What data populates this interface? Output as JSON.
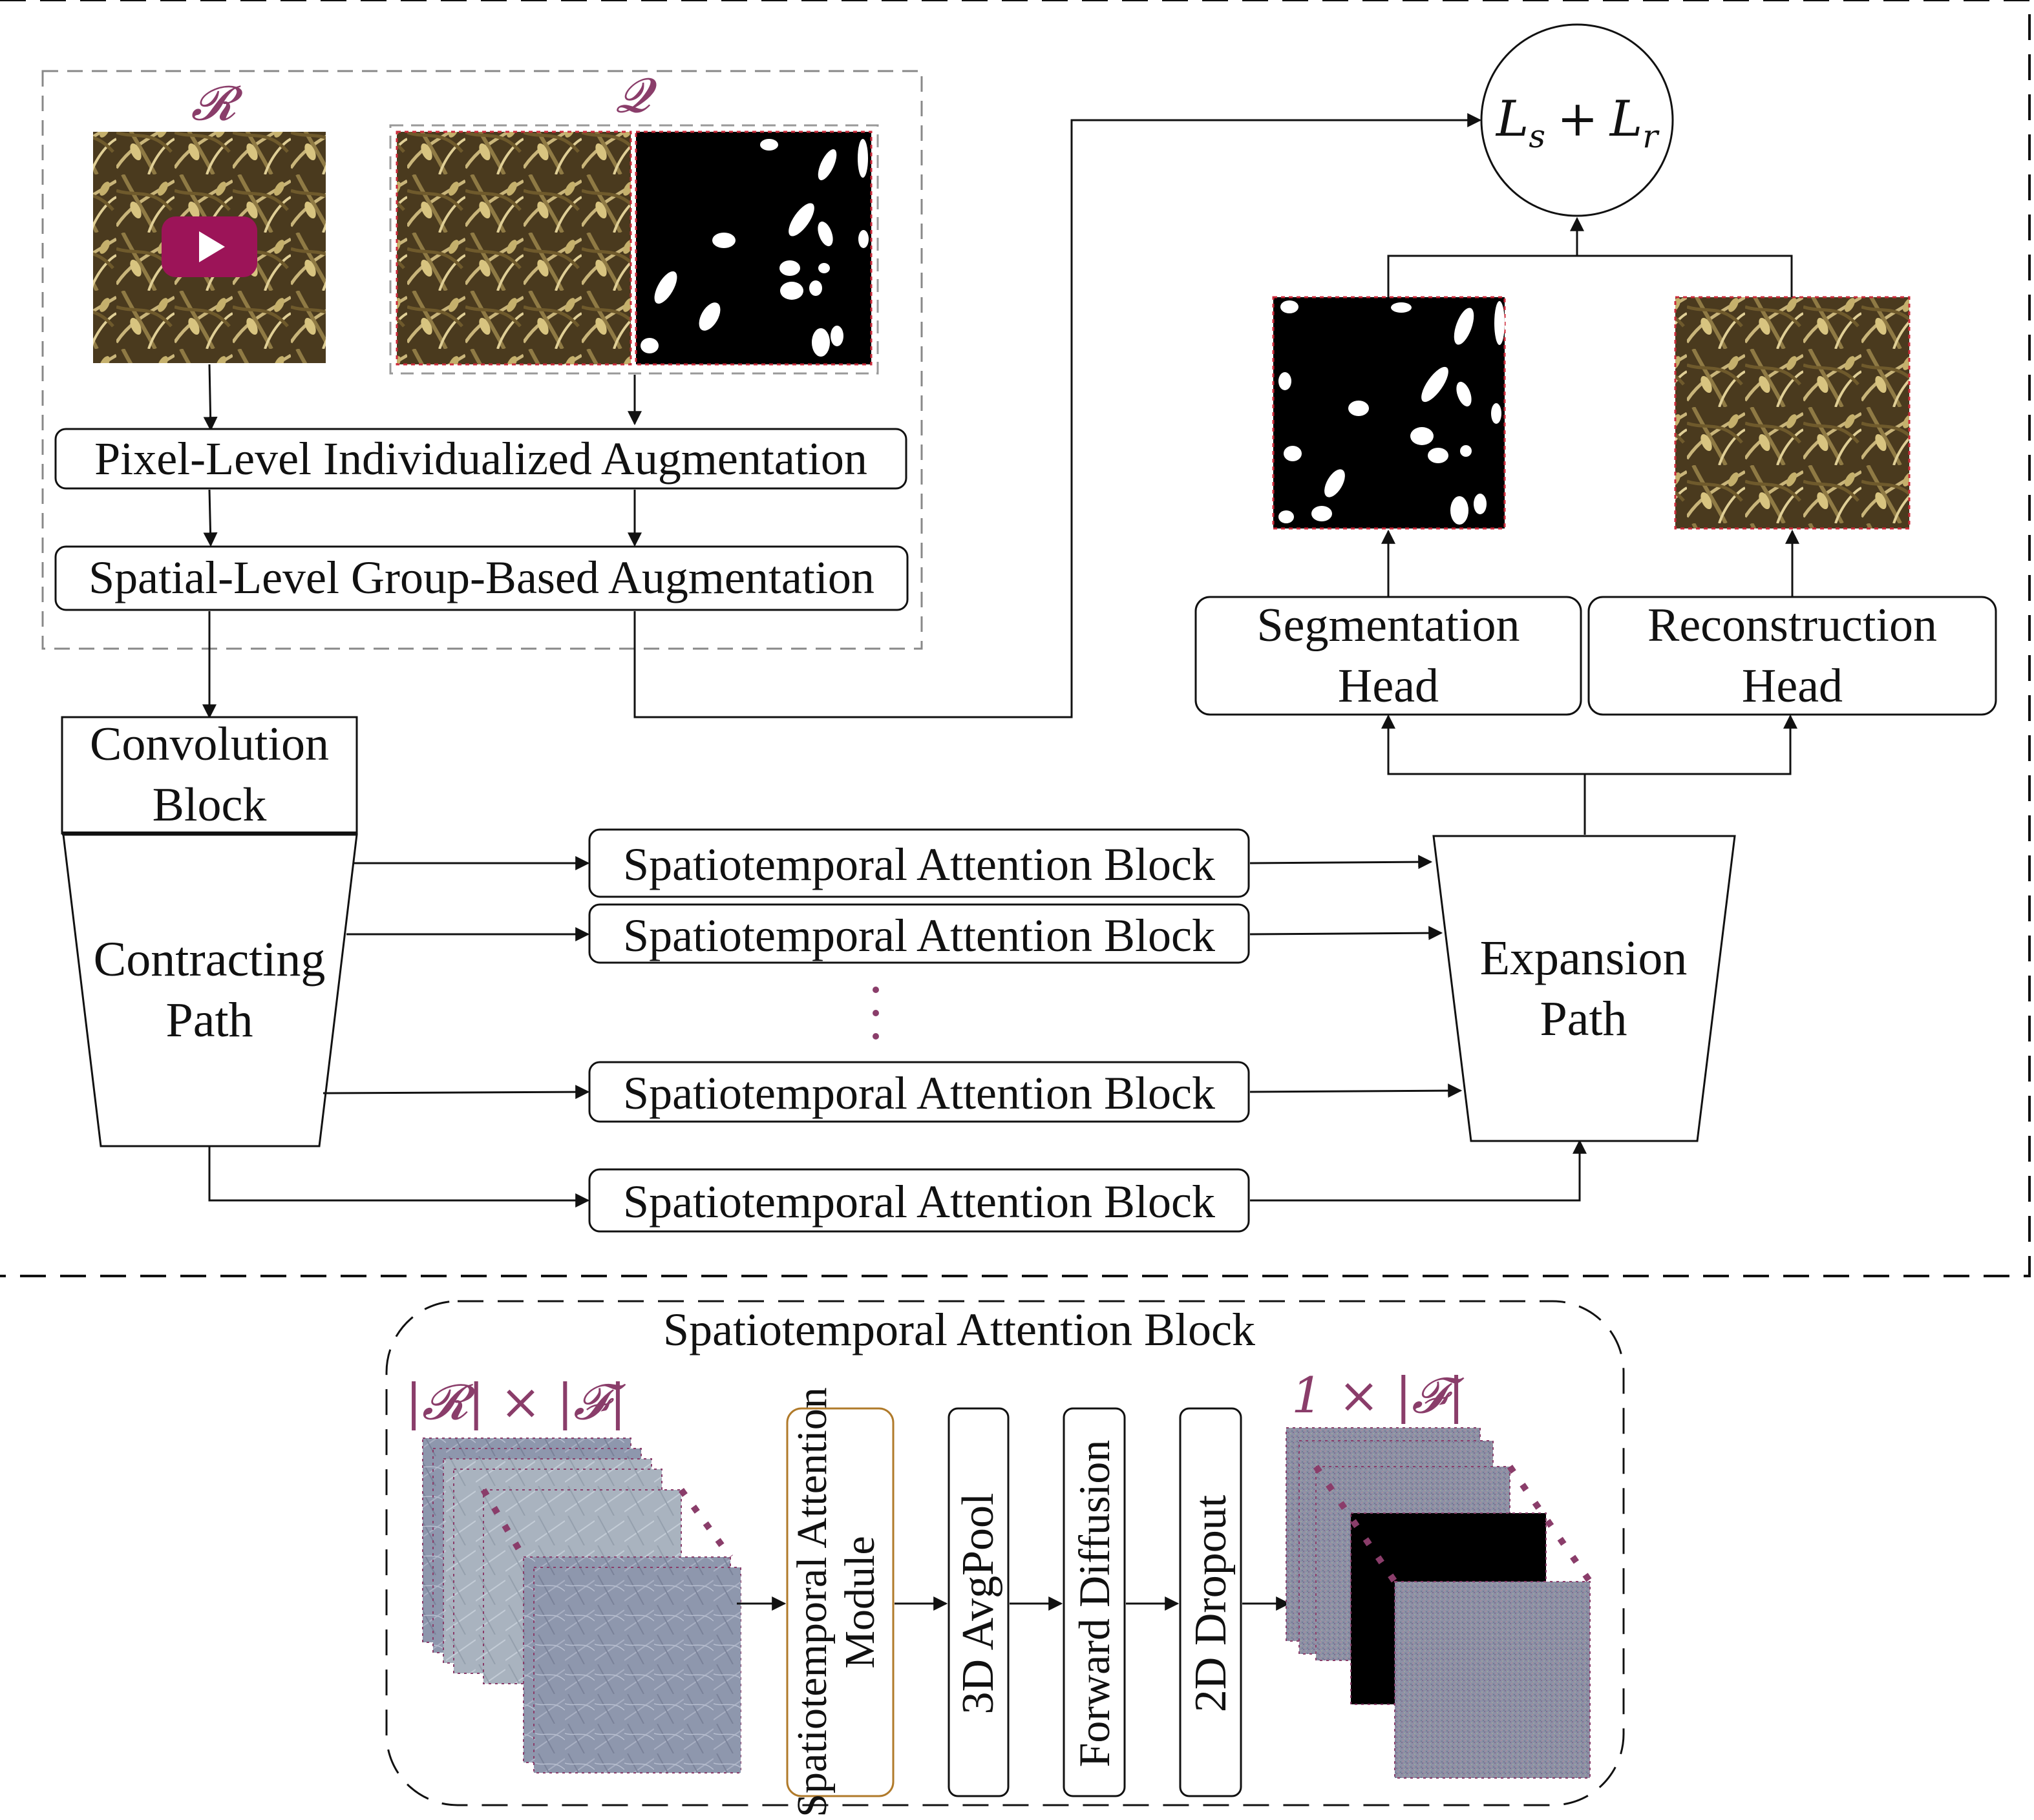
{
  "colors": {
    "accent": "#8a3d6a",
    "module_border": "#b07a2a",
    "mask_border": "#cc2a3a",
    "play_button": "#9c1458",
    "field_dark": "#4a3a1e",
    "field_light": "#c9b57a",
    "feature_map": "#8e97ad"
  },
  "icons": {
    "play": "play-icon"
  },
  "inputs": {
    "r_label": "𝓡",
    "q_label": "𝓠"
  },
  "augmentation": {
    "pixel_level": "Pixel-Level Individualized Augmentation",
    "spatial_level": "Spatial-Level Group-Based Augmentation"
  },
  "encoder": {
    "convolution_block": [
      "Convolution",
      "Block"
    ],
    "contracting_path": [
      "Contracting",
      "Path"
    ]
  },
  "skip_blocks": [
    "Spatiotemporal Attention Block",
    "Spatiotemporal Attention Block",
    "Spatiotemporal Attention Block",
    "Spatiotemporal Attention Block"
  ],
  "decoder": {
    "expansion_path": [
      "Expansion",
      "Path"
    ],
    "segmentation_head": [
      "Segmentation",
      "Head"
    ],
    "reconstruction_head": [
      "Reconstruction",
      "Head"
    ]
  },
  "loss": {
    "L": "L",
    "s": "s",
    "plus": "+",
    "r": "r"
  },
  "detail": {
    "title": "Spatiotemporal Attention Block",
    "input_dim": "|𝓡| × |𝓕|",
    "output_dim": "1 × |𝓕|",
    "steps": [
      "Spatiotemporal Attention Module",
      "3D AvgPool",
      "Forward Diffusion",
      "2D Dropout"
    ]
  }
}
